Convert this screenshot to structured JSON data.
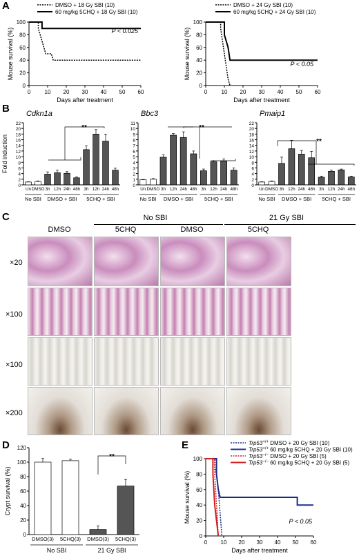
{
  "letters": {
    "a": "A",
    "b": "B",
    "c": "C",
    "d": "D",
    "e": "E"
  },
  "panel_c": {
    "group_no_sbi": "No SBI",
    "group_21gy": "21 Gy SBI",
    "cols": [
      "DMSO",
      "5CHQ",
      "DMSO",
      "5CHQ"
    ],
    "rows": [
      "×20",
      "×100",
      "×100",
      "×200"
    ]
  },
  "chart_data": [
    {
      "id": "A1",
      "type": "line",
      "ylabel": "Mouse survival (%)",
      "xlabel": "Days after treatment",
      "xlim": [
        0,
        60
      ],
      "ylim": [
        0,
        100
      ],
      "xticks": [
        0,
        10,
        20,
        30,
        40,
        50,
        60
      ],
      "yticks": [
        0,
        20,
        40,
        60,
        80,
        100
      ],
      "annotation": "P < 0.025",
      "series": [
        {
          "name": "DMSO + 18 Gy SBI (10)",
          "style": "dotted",
          "points": [
            [
              0,
              100
            ],
            [
              5,
              100
            ],
            [
              5,
              90
            ],
            [
              6,
              80
            ],
            [
              7,
              70
            ],
            [
              8,
              60
            ],
            [
              9,
              50
            ],
            [
              12,
              50
            ],
            [
              13,
              40
            ],
            [
              60,
              40
            ]
          ]
        },
        {
          "name": "60 mg/kg 5CHQ + 18 Gy SBI (10)",
          "style": "solid",
          "points": [
            [
              0,
              100
            ],
            [
              7,
              100
            ],
            [
              7,
              90
            ],
            [
              60,
              90
            ]
          ]
        }
      ]
    },
    {
      "id": "A2",
      "type": "line",
      "ylabel": "Mouse survival (%)",
      "xlabel": "Days after treatment",
      "xlim": [
        0,
        60
      ],
      "ylim": [
        0,
        100
      ],
      "xticks": [
        0,
        10,
        20,
        30,
        40,
        50,
        60
      ],
      "yticks": [
        0,
        20,
        40,
        60,
        80,
        100
      ],
      "annotation": "P < 0.05",
      "series": [
        {
          "name": "DMSO + 24 Gy SBI (10)",
          "style": "dotted",
          "points": [
            [
              0,
              100
            ],
            [
              8,
              100
            ],
            [
              8,
              90
            ],
            [
              9,
              70
            ],
            [
              10,
              50
            ],
            [
              11,
              30
            ],
            [
              12,
              10
            ],
            [
              13,
              0
            ]
          ]
        },
        {
          "name": "60 mg/kg 5CHQ + 24 Gy SBI (10)",
          "style": "solid",
          "points": [
            [
              0,
              100
            ],
            [
              10,
              100
            ],
            [
              10,
              80
            ],
            [
              12,
              60
            ],
            [
              13,
              40
            ],
            [
              60,
              40
            ]
          ]
        }
      ]
    },
    {
      "id": "B1",
      "type": "bar",
      "title": "Cdkn1a",
      "ylabel": "Fold induction",
      "ylim": [
        0,
        22
      ],
      "yticks": [
        0,
        2,
        4,
        6,
        8,
        10,
        12,
        14,
        16,
        18,
        20,
        22
      ],
      "categories": [
        "Un",
        "DMSO",
        "3h",
        "12h",
        "24h",
        "48h",
        "3h",
        "12h",
        "24h",
        "48h"
      ],
      "values": [
        1.0,
        1.2,
        3.8,
        4.3,
        4.1,
        2.5,
        12.5,
        18.0,
        15.5,
        5.2
      ],
      "errors": [
        0.1,
        0.2,
        0.8,
        0.9,
        0.6,
        0.3,
        1.3,
        1.6,
        2.5,
        0.7
      ],
      "groups": [
        "No SBI",
        "DMSO + SBI",
        "5CHQ + SBI"
      ],
      "sig": "**"
    },
    {
      "id": "B2",
      "type": "bar",
      "title": "Bbc3",
      "ylim": [
        0,
        11
      ],
      "yticks": [
        0,
        1,
        2,
        3,
        4,
        5,
        6,
        7,
        8,
        9,
        10,
        11
      ],
      "categories": [
        "Un",
        "DMSO",
        "3h",
        "12h",
        "24h",
        "48h",
        "3h",
        "12h",
        "24h",
        "48h"
      ],
      "values": [
        0.9,
        1.0,
        4.9,
        8.8,
        8.4,
        5.5,
        2.5,
        4.1,
        4.2,
        2.6
      ],
      "errors": [
        0.05,
        0.1,
        0.4,
        0.3,
        1.0,
        0.5,
        0.3,
        0.2,
        0.4,
        0.4
      ],
      "groups": [
        "No SBI",
        "DMSO + SBI",
        "5CHQ + SBI"
      ],
      "sig": "**"
    },
    {
      "id": "B3",
      "type": "bar",
      "title": "Pmaip1",
      "ylim": [
        0,
        22
      ],
      "yticks": [
        0,
        2,
        4,
        6,
        8,
        10,
        12,
        14,
        16,
        18,
        20,
        22
      ],
      "categories": [
        "Un",
        "DMSO",
        "3h",
        "12h",
        "24h",
        "48h",
        "3h",
        "12h",
        "24h",
        "48h"
      ],
      "values": [
        1.0,
        1.2,
        7.6,
        12.8,
        10.9,
        9.6,
        2.7,
        4.8,
        5.3,
        2.8
      ],
      "errors": [
        0.1,
        0.2,
        2.2,
        3.0,
        1.3,
        2.3,
        0.4,
        0.4,
        0.3,
        0.3
      ],
      "groups": [
        "No SBI",
        "DMSO + SBI",
        "5CHQ + SBI"
      ],
      "sig": "**"
    },
    {
      "id": "D",
      "type": "bar",
      "ylabel": "Crypt survival (%)",
      "ylim": [
        0,
        120
      ],
      "yticks": [
        0,
        20,
        40,
        60,
        80,
        100,
        120
      ],
      "categories": [
        "DMSO(3)",
        "5CHQ(3)",
        "DMSO(3)",
        "5CHQ(3)"
      ],
      "values": [
        100,
        102,
        7,
        67
      ],
      "errors": [
        5,
        2,
        5,
        9
      ],
      "fills": [
        "#ffffff",
        "#ffffff",
        "#555555",
        "#555555"
      ],
      "groups": [
        "No SBI",
        "21 Gy SBI"
      ],
      "sig": "**"
    },
    {
      "id": "E",
      "type": "line",
      "ylabel": "Mouse survival (%)",
      "xlabel": "Days after treatment",
      "xlim": [
        0,
        60
      ],
      "ylim": [
        0,
        100
      ],
      "xticks": [
        0,
        10,
        20,
        30,
        40,
        50,
        60
      ],
      "yticks": [
        0,
        20,
        40,
        60,
        80,
        100
      ],
      "annotation": "P < 0.05",
      "series": [
        {
          "name_gene": "Trp53",
          "name_sup": "+/+",
          "name_rest": " DMSO + 20 Gy SBI (10)",
          "color": "#1a2b8c",
          "style": "dotted",
          "points": [
            [
              0,
              100
            ],
            [
              5,
              100
            ],
            [
              5,
              90
            ],
            [
              6,
              80
            ],
            [
              7,
              60
            ],
            [
              8,
              30
            ],
            [
              9,
              0
            ]
          ]
        },
        {
          "name_gene": "Trp53",
          "name_sup": "+/+",
          "name_rest": " 60 mg/kg 5CHQ + 20 Gy SBI (10)",
          "color": "#1a2b8c",
          "style": "solid",
          "points": [
            [
              0,
              100
            ],
            [
              6,
              100
            ],
            [
              6,
              80
            ],
            [
              7,
              60
            ],
            [
              8,
              50
            ],
            [
              51,
              50
            ],
            [
              51,
              40
            ],
            [
              60,
              40
            ]
          ]
        },
        {
          "name_gene": "Trp53",
          "name_sup": "−/−",
          "name_rest": " DMSO + 20 Gy SBI (5)",
          "color": "#d11f1f",
          "style": "dotted",
          "points": [
            [
              0,
              100
            ],
            [
              5,
              100
            ],
            [
              5,
              80
            ],
            [
              6,
              40
            ],
            [
              7,
              0
            ]
          ]
        },
        {
          "name_gene": "Trp53",
          "name_sup": "−/−",
          "name_rest": " 60 mg/kg 5CHQ + 20 Gy SBI (5)",
          "color": "#d11f1f",
          "style": "solid",
          "points": [
            [
              0,
              100
            ],
            [
              4,
              100
            ],
            [
              4,
              80
            ],
            [
              5,
              40
            ],
            [
              6,
              20
            ],
            [
              7,
              0
            ]
          ]
        }
      ]
    }
  ]
}
